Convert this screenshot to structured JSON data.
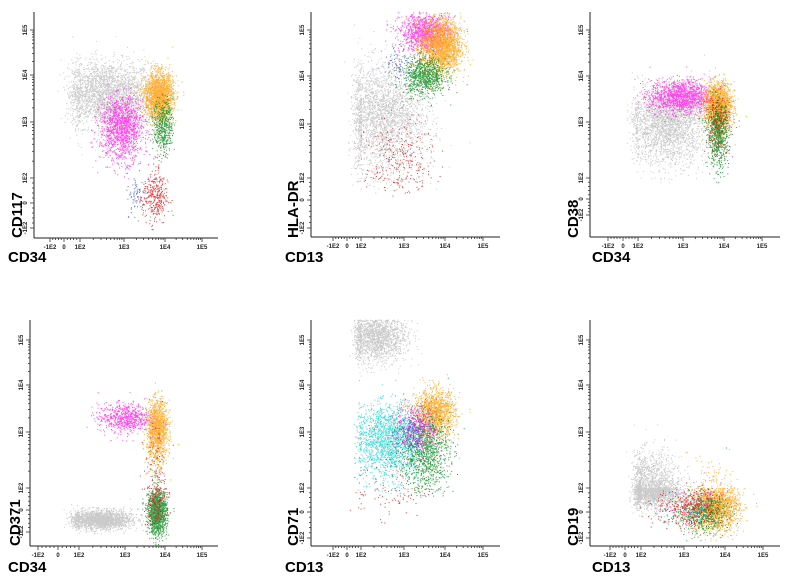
{
  "figure": {
    "description": "Flow cytometry bivariate dot plots (6 panels, log-scaled axes)",
    "tick_labels": [
      "-1E2",
      "0",
      "1E2",
      "1E3",
      "1E4",
      "1E5"
    ],
    "colors": {
      "gray": "#9e9e9e",
      "magenta": "#ff1ee6",
      "orange": "#ff9f0a",
      "green": "#0a8a1e",
      "red": "#e01010",
      "blue": "#3c50d0",
      "cyan": "#19d2d2"
    }
  },
  "chart_data": [
    {
      "type": "scatter",
      "title": "",
      "xlabel": "CD34",
      "ylabel": "CD117",
      "x_ticks": [
        "-1E2",
        "0",
        "1E2",
        "1E3",
        "1E4",
        "1E5"
      ],
      "y_ticks": [
        "-1E2",
        "0",
        "1E2",
        "1E3",
        "1E4",
        "1E5"
      ],
      "axis_scale": "biexponential/log",
      "grid": false,
      "series": [
        {
          "name": "gray population",
          "color": "gray",
          "cx": 2.6,
          "cy": 3.6,
          "sx": 0.55,
          "sy": 0.35,
          "n": 2600
        },
        {
          "name": "magenta population",
          "color": "magenta",
          "cx": 2.95,
          "cy": 2.9,
          "sx": 0.25,
          "sy": 0.3,
          "n": 1500
        },
        {
          "name": "orange population",
          "color": "orange",
          "cx": 3.85,
          "cy": 3.55,
          "sx": 0.18,
          "sy": 0.25,
          "n": 2000
        },
        {
          "name": "green population",
          "color": "green",
          "cx": 3.95,
          "cy": 2.95,
          "sx": 0.12,
          "sy": 0.25,
          "n": 500
        },
        {
          "name": "red population",
          "color": "red",
          "cx": 3.75,
          "cy": 1.25,
          "sx": 0.15,
          "sy": 0.55,
          "n": 350
        },
        {
          "name": "blue population",
          "color": "blue",
          "cx": 3.3,
          "cy": 1.3,
          "sx": 0.12,
          "sy": 0.4,
          "n": 70
        }
      ]
    },
    {
      "type": "scatter",
      "title": "",
      "xlabel": "CD13",
      "ylabel": "HLA-DR",
      "x_ticks": [
        "-1E2",
        "0",
        "1E2",
        "1E3",
        "1E4",
        "1E5"
      ],
      "y_ticks": [
        "-1E2",
        "0",
        "1E2",
        "1E3",
        "1E4",
        "1E5"
      ],
      "axis_scale": "biexponential/log",
      "grid": false,
      "series": [
        {
          "name": "gray population",
          "color": "gray",
          "cx": 2.5,
          "cy": 3.15,
          "sx": 0.5,
          "sy": 0.55,
          "n": 2600
        },
        {
          "name": "magenta population",
          "color": "magenta",
          "cx": 3.5,
          "cy": 4.95,
          "sx": 0.3,
          "sy": 0.2,
          "n": 1100
        },
        {
          "name": "orange population",
          "color": "orange",
          "cx": 3.9,
          "cy": 4.65,
          "sx": 0.25,
          "sy": 0.3,
          "n": 2200
        },
        {
          "name": "green population",
          "color": "green",
          "cx": 3.5,
          "cy": 4.0,
          "sx": 0.25,
          "sy": 0.2,
          "n": 900
        },
        {
          "name": "red population",
          "color": "red",
          "cx": 2.9,
          "cy": 2.3,
          "sx": 0.4,
          "sy": 0.4,
          "n": 280
        },
        {
          "name": "blue population",
          "color": "blue",
          "cx": 2.9,
          "cy": 4.3,
          "sx": 0.2,
          "sy": 0.2,
          "n": 90
        }
      ]
    },
    {
      "type": "scatter",
      "title": "",
      "xlabel": "CD34",
      "ylabel": "CD38",
      "x_ticks": [
        "-1E2",
        "0",
        "1E2",
        "1E3",
        "1E4",
        "1E5"
      ],
      "y_ticks": [
        "-1E2",
        "0",
        "1E2",
        "1E3",
        "1E4",
        "1E5"
      ],
      "axis_scale": "biexponential/log",
      "grid": false,
      "series": [
        {
          "name": "gray population",
          "color": "gray",
          "cx": 2.65,
          "cy": 2.95,
          "sx": 0.45,
          "sy": 0.35,
          "n": 2400
        },
        {
          "name": "magenta population",
          "color": "magenta",
          "cx": 2.95,
          "cy": 3.55,
          "sx": 0.35,
          "sy": 0.18,
          "n": 1500
        },
        {
          "name": "orange population",
          "color": "orange",
          "cx": 3.85,
          "cy": 3.35,
          "sx": 0.17,
          "sy": 0.25,
          "n": 1700
        },
        {
          "name": "green population",
          "color": "green",
          "cx": 3.85,
          "cy": 2.8,
          "sx": 0.13,
          "sy": 0.3,
          "n": 800
        },
        {
          "name": "red population",
          "color": "red",
          "cx": 3.85,
          "cy": 3.0,
          "sx": 0.15,
          "sy": 0.3,
          "n": 200
        }
      ]
    },
    {
      "type": "scatter",
      "title": "",
      "xlabel": "CD34",
      "ylabel": "CD371",
      "x_ticks": [
        "-1E2",
        "0",
        "1E2",
        "1E3",
        "1E4",
        "1E5"
      ],
      "y_ticks": [
        "-1E2",
        "0",
        "1E2",
        "1E3",
        "1E4",
        "1E5"
      ],
      "axis_scale": "biexponential/log",
      "grid": false,
      "series": [
        {
          "name": "gray population",
          "color": "gray",
          "cx": 2.45,
          "cy": 0.55,
          "sx": 0.35,
          "sy": 0.22,
          "n": 2000
        },
        {
          "name": "magenta population",
          "color": "magenta",
          "cx": 3.0,
          "cy": 3.3,
          "sx": 0.3,
          "sy": 0.15,
          "n": 700
        },
        {
          "name": "orange population",
          "color": "orange",
          "cx": 3.8,
          "cy": 3.05,
          "sx": 0.13,
          "sy": 0.3,
          "n": 1300
        },
        {
          "name": "green population",
          "color": "green",
          "cx": 3.8,
          "cy": 0.9,
          "sx": 0.12,
          "sy": 0.5,
          "n": 1400
        },
        {
          "name": "red population",
          "color": "red",
          "cx": 3.75,
          "cy": 1.8,
          "sx": 0.14,
          "sy": 0.8,
          "n": 250
        }
      ]
    },
    {
      "type": "scatter",
      "title": "",
      "xlabel": "CD13",
      "ylabel": "CD71",
      "x_ticks": [
        "-1E2",
        "0",
        "1E2",
        "1E3",
        "1E4",
        "1E5"
      ],
      "y_ticks": [
        "-1E2",
        "0",
        "1E2",
        "1E3",
        "1E4",
        "1E5"
      ],
      "axis_scale": "biexponential/log",
      "grid": false,
      "series": [
        {
          "name": "gray population",
          "color": "gray",
          "cx": 2.35,
          "cy": 5.1,
          "sx": 0.35,
          "sy": 0.3,
          "n": 1800
        },
        {
          "name": "cyan population",
          "color": "cyan",
          "cx": 2.65,
          "cy": 2.85,
          "sx": 0.4,
          "sy": 0.35,
          "n": 1800
        },
        {
          "name": "orange population",
          "color": "orange",
          "cx": 3.75,
          "cy": 3.4,
          "sx": 0.25,
          "sy": 0.25,
          "n": 1300
        },
        {
          "name": "green population",
          "color": "green",
          "cx": 3.5,
          "cy": 2.65,
          "sx": 0.3,
          "sy": 0.35,
          "n": 1100
        },
        {
          "name": "magenta population",
          "color": "magenta",
          "cx": 3.3,
          "cy": 3.1,
          "sx": 0.25,
          "sy": 0.25,
          "n": 400
        },
        {
          "name": "blue population",
          "color": "blue",
          "cx": 3.2,
          "cy": 3.0,
          "sx": 0.2,
          "sy": 0.2,
          "n": 150
        },
        {
          "name": "red population",
          "color": "red",
          "cx": 2.7,
          "cy": 1.9,
          "sx": 0.45,
          "sy": 0.55,
          "n": 110
        }
      ]
    },
    {
      "type": "scatter",
      "title": "",
      "xlabel": "CD13",
      "ylabel": "CD19",
      "x_ticks": [
        "-1E2",
        "0",
        "1E2",
        "1E3",
        "1E4",
        "1E5"
      ],
      "y_ticks": [
        "-1E2",
        "0",
        "1E2",
        "1E3",
        "1E4",
        "1E5"
      ],
      "axis_scale": "biexponential/log",
      "grid": false,
      "series": [
        {
          "name": "gray population",
          "color": "gray",
          "cx": 2.25,
          "cy": 1.9,
          "sx": 0.35,
          "sy": 0.35,
          "n": 2200
        },
        {
          "name": "orange population",
          "color": "orange",
          "cx": 3.75,
          "cy": 1.2,
          "sx": 0.3,
          "sy": 0.45,
          "n": 1800
        },
        {
          "name": "green population",
          "color": "green",
          "cx": 3.45,
          "cy": 1.0,
          "sx": 0.3,
          "sy": 0.4,
          "n": 600
        },
        {
          "name": "red population",
          "color": "red",
          "cx": 3.1,
          "cy": 1.1,
          "sx": 0.4,
          "sy": 0.4,
          "n": 350
        },
        {
          "name": "magenta population",
          "color": "magenta",
          "cx": 3.3,
          "cy": 1.3,
          "sx": 0.3,
          "sy": 0.4,
          "n": 120
        },
        {
          "name": "cyan population",
          "color": "cyan",
          "cx": 3.2,
          "cy": 1.0,
          "sx": 0.35,
          "sy": 0.35,
          "n": 80
        }
      ]
    }
  ]
}
